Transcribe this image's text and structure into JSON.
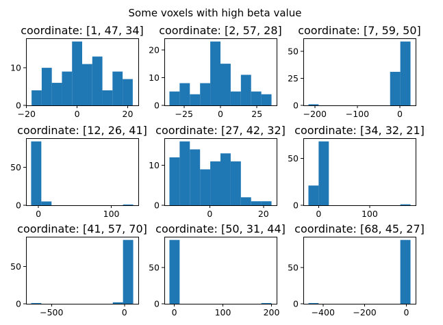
{
  "figure": {
    "title": "Some voxels with high beta value",
    "bar_color": "#1f77b4"
  },
  "chart_data": [
    {
      "type": "bar",
      "title": "coordinate: [1, 47, 34]",
      "bin_edges": [
        -18,
        -14,
        -10,
        -6,
        -2,
        2,
        6,
        10,
        14,
        18,
        22
      ],
      "values": [
        4,
        10,
        6,
        9,
        17,
        11,
        13,
        4,
        9,
        7
      ],
      "xlim": [
        -20.2,
        24.2
      ],
      "ylim": [
        0,
        17.85
      ],
      "xticks": [
        -20,
        0,
        20
      ],
      "yticks": [
        0,
        10
      ]
    },
    {
      "type": "bar",
      "title": "coordinate: [2, 57, 28]",
      "bin_edges": [
        -35,
        -28,
        -21,
        -14,
        -7,
        0,
        7,
        14,
        21,
        28,
        35
      ],
      "values": [
        5,
        8,
        4,
        8,
        23,
        15,
        5,
        11,
        5,
        4
      ],
      "xlim": [
        -38.5,
        38.5
      ],
      "ylim": [
        0,
        24.15
      ],
      "xticks": [
        -25,
        0,
        25
      ],
      "yticks": [
        0,
        10,
        20
      ]
    },
    {
      "type": "bar",
      "title": "coordinate: [7, 59, 50]",
      "bin_edges": [
        -215,
        -191,
        -167,
        -143,
        -119,
        -95,
        -71,
        -47,
        -23,
        1,
        25
      ],
      "values": [
        1,
        0,
        0,
        0,
        0,
        0,
        0,
        0,
        31,
        59
      ],
      "xlim": [
        -227,
        37
      ],
      "ylim": [
        0,
        61.95
      ],
      "xticks": [
        -200,
        -100,
        0
      ],
      "yticks": [
        0,
        25,
        50
      ]
    },
    {
      "type": "bar",
      "title": "coordinate: [12, 26, 41]",
      "bin_edges": [
        -10,
        4,
        18,
        32,
        46,
        60,
        74,
        88,
        102,
        116,
        130
      ],
      "values": [
        84,
        5,
        0,
        0,
        0,
        0,
        0,
        0,
        0,
        1
      ],
      "xlim": [
        -17,
        137
      ],
      "ylim": [
        0,
        88.2
      ],
      "xticks": [
        0,
        100
      ],
      "yticks": [
        0,
        50
      ]
    },
    {
      "type": "bar",
      "title": "coordinate: [27, 42, 32]",
      "bin_edges": [
        -15,
        -11.2,
        -7.4,
        -3.6,
        0.2,
        4,
        7.8,
        11.6,
        15.4,
        19.2,
        23
      ],
      "values": [
        12,
        16,
        14,
        9,
        11,
        13,
        11,
        2,
        1,
        1
      ],
      "xlim": [
        -16.9,
        24.9
      ],
      "ylim": [
        0,
        16.8
      ],
      "xticks": [
        0,
        20
      ],
      "yticks": [
        0,
        10
      ]
    },
    {
      "type": "bar",
      "title": "coordinate: [34, 32, 21]",
      "bin_edges": [
        -20,
        0,
        20,
        40,
        60,
        80,
        100,
        120,
        140,
        160,
        180
      ],
      "values": [
        21,
        68,
        0,
        0,
        0,
        0,
        0,
        0,
        0,
        1
      ],
      "xlim": [
        -30,
        190
      ],
      "ylim": [
        0,
        71.4
      ],
      "xticks": [
        0,
        100
      ],
      "yticks": [
        0,
        50
      ]
    },
    {
      "type": "bar",
      "title": "coordinate: [41, 57, 70]",
      "bin_edges": [
        -640,
        -570,
        -500,
        -430,
        -360,
        -290,
        -220,
        -150,
        -80,
        -10,
        60
      ],
      "values": [
        1,
        0,
        0,
        0,
        0,
        0,
        0,
        0,
        2,
        86
      ],
      "xlim": [
        -675,
        95
      ],
      "ylim": [
        0,
        90.3
      ],
      "xticks": [
        -500,
        0
      ],
      "yticks": [
        0,
        50
      ]
    },
    {
      "type": "bar",
      "title": "coordinate: [50, 31, 44]",
      "bin_edges": [
        -10,
        11,
        32,
        53,
        74,
        95,
        116,
        137,
        158,
        179,
        200
      ],
      "values": [
        88,
        0,
        0,
        0,
        0,
        0,
        0,
        0,
        0,
        1
      ],
      "xlim": [
        -20.5,
        210.5
      ],
      "ylim": [
        0,
        92.4
      ],
      "xticks": [
        0,
        100,
        200
      ],
      "yticks": [
        0,
        50
      ]
    },
    {
      "type": "bar",
      "title": "coordinate: [68, 45, 27]",
      "bin_edges": [
        -470,
        -421,
        -372,
        -323,
        -274,
        -225,
        -176,
        -127,
        -78,
        -29,
        20
      ],
      "values": [
        1,
        0,
        0,
        0,
        0,
        0,
        0,
        0,
        0,
        88
      ],
      "xlim": [
        -494.5,
        44.5
      ],
      "ylim": [
        0,
        92.4
      ],
      "xticks": [
        -400,
        -200,
        0
      ],
      "yticks": [
        0,
        50
      ]
    }
  ]
}
